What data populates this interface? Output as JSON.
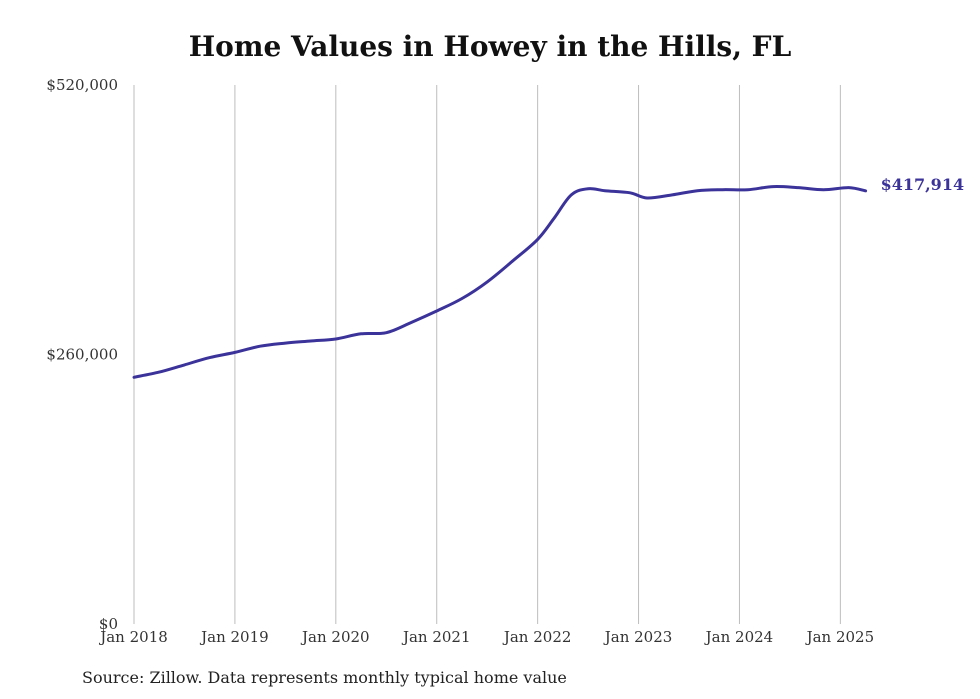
{
  "chart_data": {
    "type": "line",
    "title": "Home Values in Howey in the Hills, FL",
    "xlabel": "",
    "ylabel": "",
    "ylim": [
      0,
      520000
    ],
    "yticks": [
      0,
      260000,
      520000
    ],
    "ytick_labels": [
      "$0",
      "$260,000",
      "$520,000"
    ],
    "xlim": [
      "2018-01",
      "2025-05"
    ],
    "xticks": [
      "2018-01",
      "2019-01",
      "2020-01",
      "2021-01",
      "2022-01",
      "2023-01",
      "2024-01",
      "2025-01"
    ],
    "xtick_labels": [
      "Jan 2018",
      "Jan 2019",
      "Jan 2020",
      "Jan 2021",
      "Jan 2022",
      "Jan 2023",
      "Jan 2024",
      "Jan 2025"
    ],
    "grid": "vertical",
    "legend": "none",
    "end_label": "$417,914",
    "series": [
      {
        "color": "#3b3399",
        "x": [
          "2018-01",
          "2018-04",
          "2018-07",
          "2018-10",
          "2019-01",
          "2019-04",
          "2019-07",
          "2019-10",
          "2020-01",
          "2020-04",
          "2020-07",
          "2020-10",
          "2021-01",
          "2021-04",
          "2021-07",
          "2021-10",
          "2022-01",
          "2022-03",
          "2022-05",
          "2022-07",
          "2022-09",
          "2022-12",
          "2023-02",
          "2023-05",
          "2023-08",
          "2023-11",
          "2024-02",
          "2024-05",
          "2024-08",
          "2024-11",
          "2025-02",
          "2025-04"
        ],
        "values": [
          238000,
          243000,
          250000,
          257000,
          262000,
          268000,
          271000,
          273000,
          275000,
          280000,
          281000,
          291000,
          302000,
          314000,
          330000,
          350000,
          371000,
          392000,
          414000,
          420000,
          418000,
          416000,
          411000,
          414000,
          418000,
          419000,
          419000,
          422000,
          421000,
          419000,
          421000,
          417914
        ]
      }
    ]
  },
  "source_note": "Source: Zillow. Data represents monthly typical home value"
}
